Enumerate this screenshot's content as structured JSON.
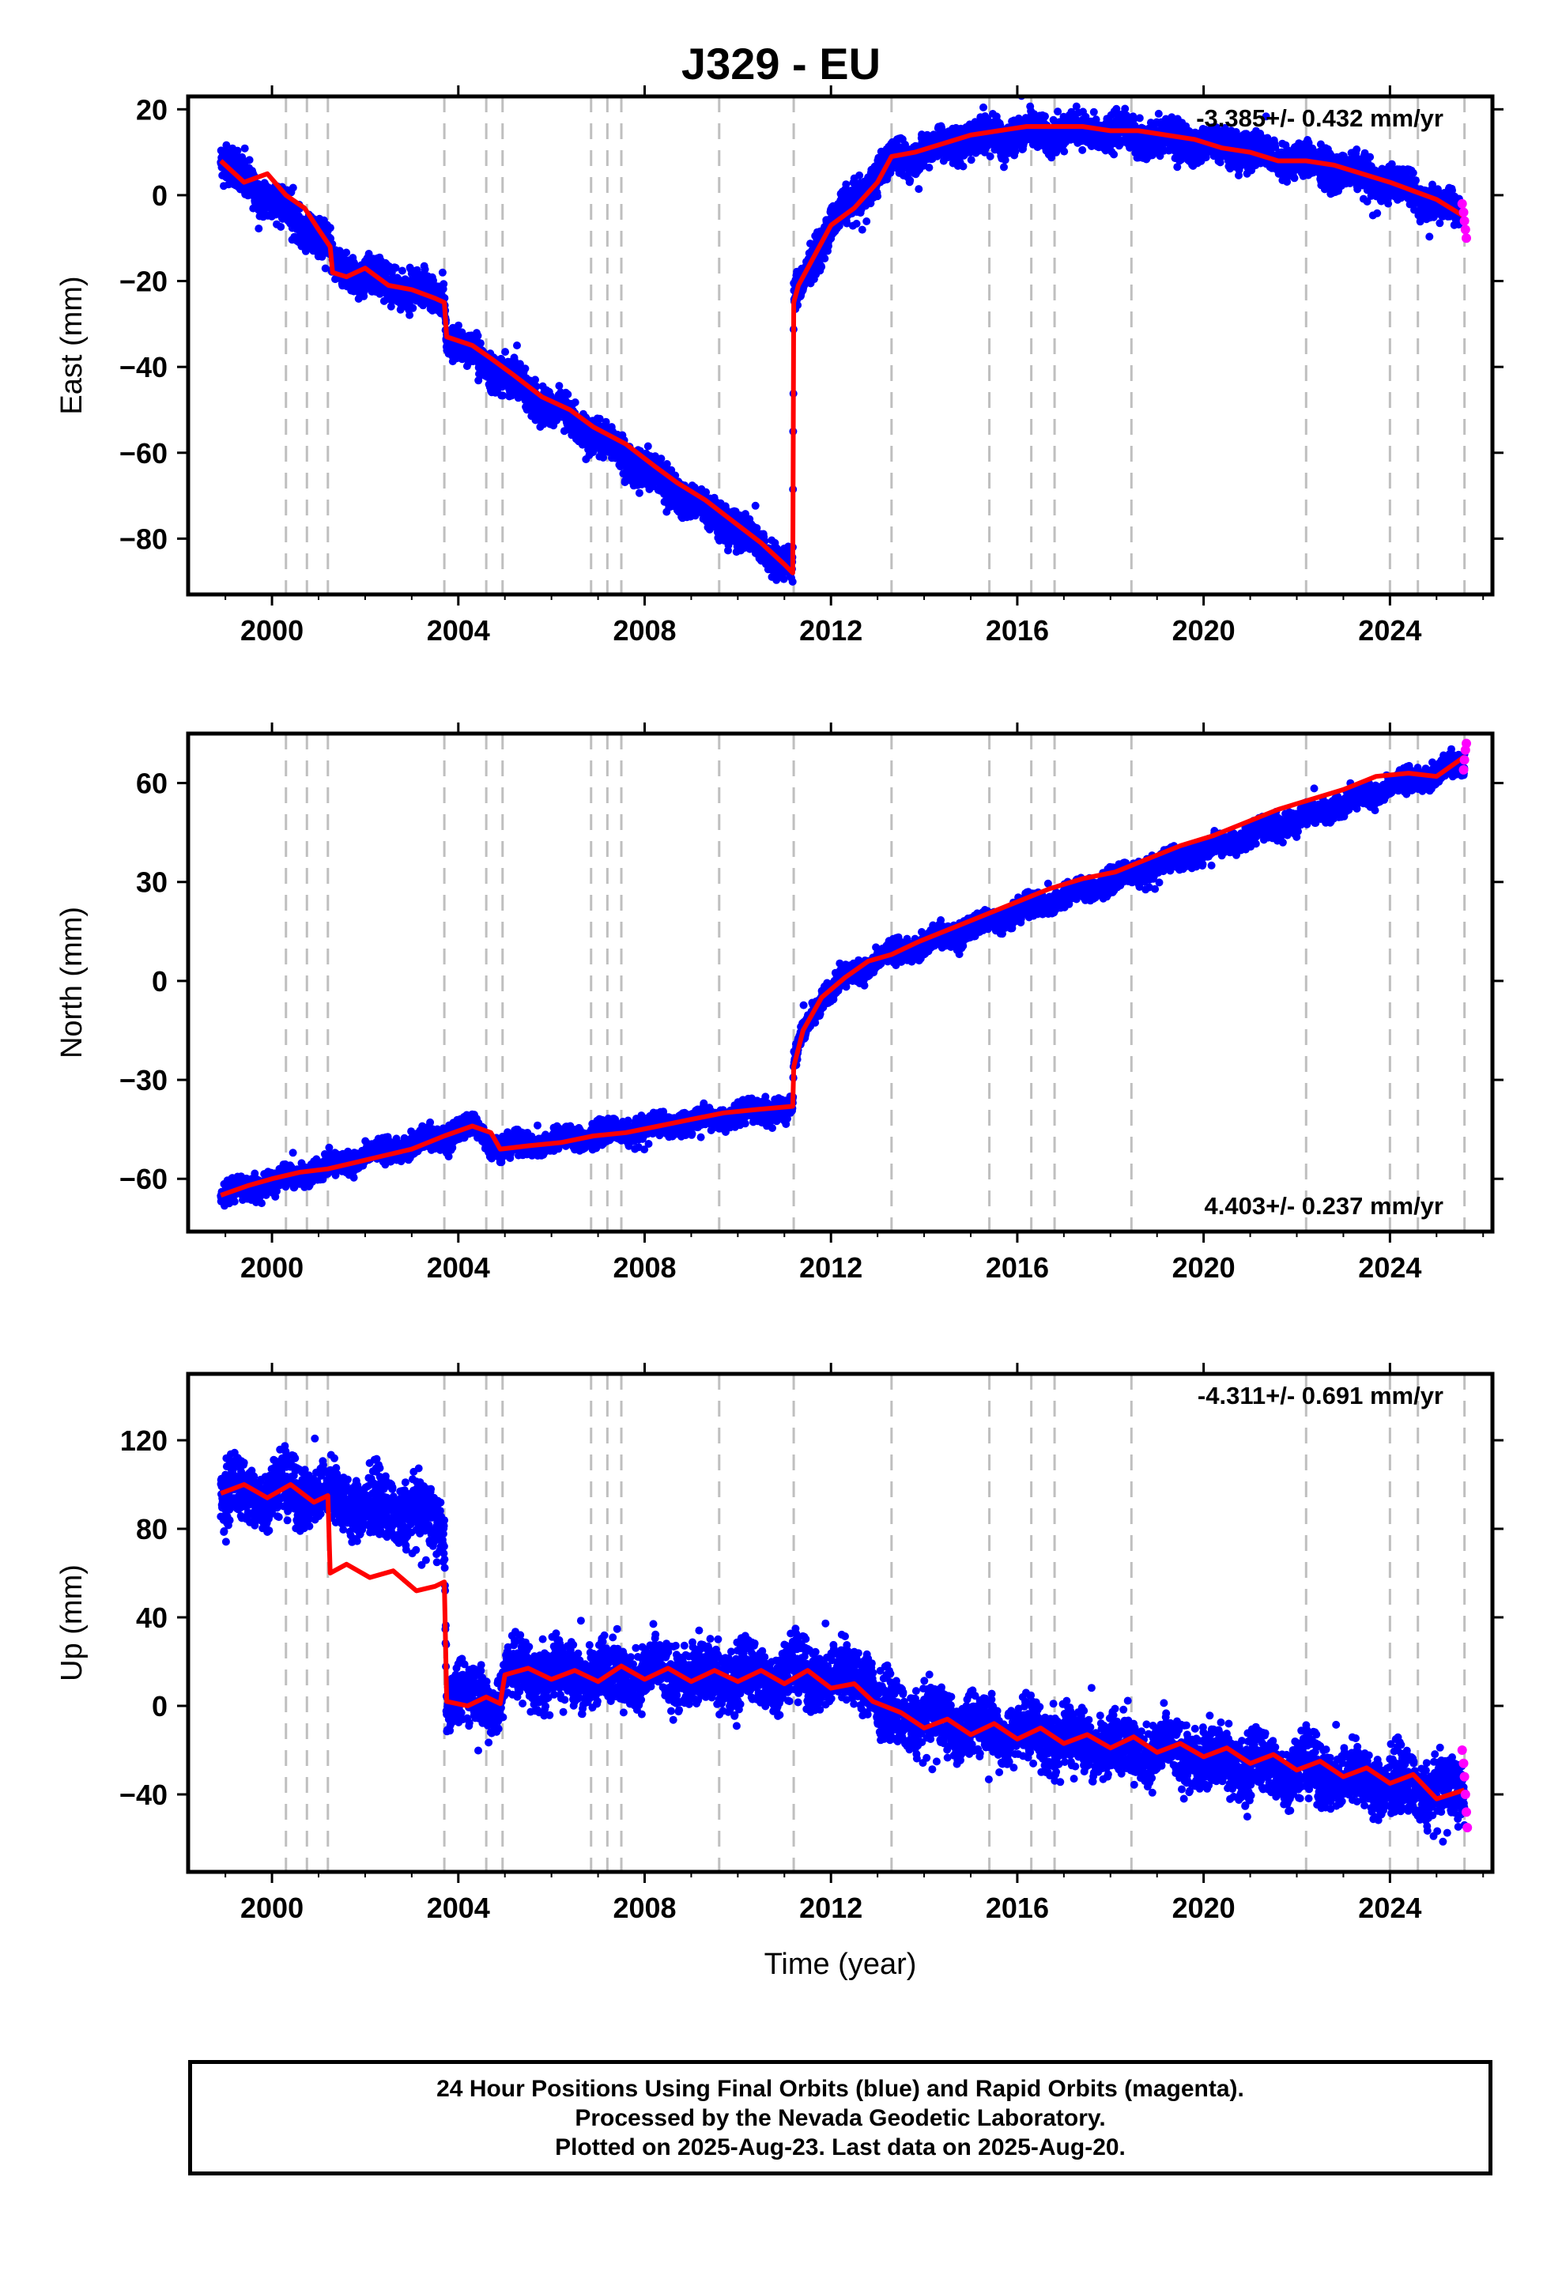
{
  "title": "J329 - EU",
  "xlabel": "Time (year)",
  "footer": {
    "line1": "24 Hour Positions Using Final Orbits (blue) and Rapid Orbits (magenta).",
    "line2": "Processed by the Nevada Geodetic Laboratory.",
    "line3": "Plotted on 2025-Aug-23. Last data on 2025-Aug-20."
  },
  "colors": {
    "final_orbits": "#0000ff",
    "rapid_orbits": "#ff00ff",
    "model_fit": "#ff0000",
    "event_lines": "#bfbfbf"
  },
  "chart_data": [
    {
      "type": "scatter",
      "panel": "east",
      "ylabel": "East (mm)",
      "rate_text": "-3.385+/- 0.432 mm/yr",
      "rate_position": "top-right",
      "xlim": [
        1998.2,
        2026.2
      ],
      "ylim": [
        -93,
        23
      ],
      "xticks": [
        2000,
        2004,
        2008,
        2012,
        2016,
        2020,
        2024
      ],
      "yticks": [
        -80,
        -60,
        -40,
        -20,
        0,
        20
      ],
      "model": [
        [
          1998.9,
          8
        ],
        [
          1999.4,
          3
        ],
        [
          1999.9,
          5
        ],
        [
          2000.3,
          0
        ],
        [
          2000.7,
          -3
        ],
        [
          2001.0,
          -8
        ],
        [
          2001.25,
          -12
        ],
        [
          2001.3,
          -18
        ],
        [
          2001.6,
          -19
        ],
        [
          2002.0,
          -17
        ],
        [
          2002.5,
          -21
        ],
        [
          2003.0,
          -22
        ],
        [
          2003.5,
          -24
        ],
        [
          2003.7,
          -25
        ],
        [
          2003.75,
          -33
        ],
        [
          2004.3,
          -35
        ],
        [
          2004.7,
          -38
        ],
        [
          2005.2,
          -42
        ],
        [
          2005.8,
          -47
        ],
        [
          2006.4,
          -50
        ],
        [
          2006.9,
          -54
        ],
        [
          2007.6,
          -58
        ],
        [
          2008.2,
          -63
        ],
        [
          2008.7,
          -67
        ],
        [
          2009.3,
          -71
        ],
        [
          2009.9,
          -76
        ],
        [
          2010.5,
          -81
        ],
        [
          2011.0,
          -86
        ],
        [
          2011.18,
          -88
        ],
        [
          2011.2,
          -25
        ],
        [
          2011.3,
          -21
        ],
        [
          2011.6,
          -15
        ],
        [
          2012.0,
          -7
        ],
        [
          2012.5,
          -3
        ],
        [
          2013.0,
          3
        ],
        [
          2013.3,
          9
        ],
        [
          2013.8,
          10
        ],
        [
          2014.4,
          12
        ],
        [
          2015.0,
          14
        ],
        [
          2015.6,
          15
        ],
        [
          2016.2,
          16
        ],
        [
          2016.8,
          16
        ],
        [
          2017.4,
          16
        ],
        [
          2018.0,
          15
        ],
        [
          2018.6,
          15
        ],
        [
          2019.2,
          14
        ],
        [
          2019.8,
          13
        ],
        [
          2020.4,
          11
        ],
        [
          2021.0,
          10
        ],
        [
          2021.6,
          8
        ],
        [
          2022.2,
          8
        ],
        [
          2022.8,
          7
        ],
        [
          2023.4,
          5
        ],
        [
          2024.0,
          3
        ],
        [
          2024.5,
          1
        ],
        [
          2025.0,
          -1
        ],
        [
          2025.6,
          -5
        ]
      ],
      "data_trend": [
        [
          1998.9,
          8
        ],
        [
          2001.25,
          -12
        ],
        [
          2001.3,
          -17
        ],
        [
          2003.7,
          -24
        ],
        [
          2003.75,
          -33
        ],
        [
          2011.18,
          -87
        ],
        [
          2011.2,
          -25
        ],
        [
          2011.6,
          -15
        ],
        [
          2012.0,
          -7
        ],
        [
          2013.3,
          8
        ],
        [
          2014.5,
          12
        ],
        [
          2015.5,
          14
        ],
        [
          2017.0,
          15
        ],
        [
          2018.5,
          14
        ],
        [
          2020.0,
          12
        ],
        [
          2022.0,
          8
        ],
        [
          2024.0,
          3
        ],
        [
          2025.5,
          -4
        ]
      ],
      "scatter_spread_mm": 3,
      "rapid_points": [
        [
          2025.55,
          -2
        ],
        [
          2025.58,
          -4
        ],
        [
          2025.6,
          -6
        ],
        [
          2025.62,
          -8
        ],
        [
          2025.64,
          -10
        ]
      ]
    },
    {
      "type": "scatter",
      "panel": "north",
      "ylabel": "North (mm)",
      "rate_text": "4.403+/- 0.237 mm/yr",
      "rate_position": "bottom-right",
      "xlim": [
        1998.2,
        2026.2
      ],
      "ylim": [
        -76,
        75
      ],
      "xticks": [
        2000,
        2004,
        2008,
        2012,
        2016,
        2020,
        2024
      ],
      "yticks": [
        -60,
        -30,
        0,
        30,
        60
      ],
      "model": [
        [
          1998.9,
          -65
        ],
        [
          1999.5,
          -62
        ],
        [
          2000.0,
          -60
        ],
        [
          2000.6,
          -58
        ],
        [
          2001.2,
          -57
        ],
        [
          2001.8,
          -55
        ],
        [
          2002.4,
          -53
        ],
        [
          2003.0,
          -51
        ],
        [
          2003.7,
          -47
        ],
        [
          2004.3,
          -44
        ],
        [
          2004.7,
          -46
        ],
        [
          2004.9,
          -51
        ],
        [
          2005.5,
          -50
        ],
        [
          2006.2,
          -49
        ],
        [
          2006.9,
          -47
        ],
        [
          2007.6,
          -46
        ],
        [
          2008.3,
          -44
        ],
        [
          2009.0,
          -42
        ],
        [
          2009.7,
          -40
        ],
        [
          2010.4,
          -39
        ],
        [
          2011.18,
          -38
        ],
        [
          2011.2,
          -26
        ],
        [
          2011.4,
          -15
        ],
        [
          2011.8,
          -5
        ],
        [
          2012.3,
          1
        ],
        [
          2012.8,
          6
        ],
        [
          2013.3,
          8
        ],
        [
          2013.9,
          12
        ],
        [
          2014.6,
          16
        ],
        [
          2015.3,
          20
        ],
        [
          2016.0,
          24
        ],
        [
          2016.7,
          28
        ],
        [
          2017.4,
          31
        ],
        [
          2018.1,
          33
        ],
        [
          2018.8,
          37
        ],
        [
          2019.5,
          41
        ],
        [
          2020.2,
          44
        ],
        [
          2020.9,
          48
        ],
        [
          2021.6,
          52
        ],
        [
          2022.3,
          55
        ],
        [
          2023.0,
          58
        ],
        [
          2023.7,
          62
        ],
        [
          2024.4,
          63
        ],
        [
          2025.0,
          62
        ],
        [
          2025.6,
          68
        ]
      ],
      "data_trend": [
        [
          1998.9,
          -65
        ],
        [
          2003.7,
          -47
        ],
        [
          2004.3,
          -44
        ],
        [
          2004.9,
          -51
        ],
        [
          2011.18,
          -38
        ],
        [
          2011.2,
          -26
        ],
        [
          2011.4,
          -15
        ],
        [
          2011.8,
          -5
        ],
        [
          2012.3,
          1
        ],
        [
          2013.3,
          8
        ],
        [
          2025.6,
          66
        ]
      ],
      "scatter_spread_mm": 2.5,
      "rapid_points": [
        [
          2025.58,
          64
        ],
        [
          2025.6,
          67
        ],
        [
          2025.62,
          70
        ],
        [
          2025.64,
          72
        ]
      ]
    },
    {
      "type": "scatter",
      "panel": "up",
      "ylabel": "Up (mm)",
      "rate_text": "-4.311+/- 0.691 mm/yr",
      "rate_position": "top-right",
      "xlim": [
        1998.2,
        2026.2
      ],
      "ylim": [
        -75,
        150
      ],
      "xticks": [
        2000,
        2004,
        2008,
        2012,
        2016,
        2020,
        2024
      ],
      "yticks": [
        -40,
        0,
        40,
        80,
        120
      ],
      "model": [
        [
          1998.9,
          96
        ],
        [
          1999.4,
          100
        ],
        [
          1999.9,
          94
        ],
        [
          2000.4,
          100
        ],
        [
          2000.9,
          92
        ],
        [
          2001.2,
          95
        ],
        [
          2001.25,
          60
        ],
        [
          2001.6,
          64
        ],
        [
          2002.1,
          58
        ],
        [
          2002.6,
          61
        ],
        [
          2003.1,
          52
        ],
        [
          2003.5,
          54
        ],
        [
          2003.7,
          56
        ],
        [
          2003.75,
          2
        ],
        [
          2004.2,
          0
        ],
        [
          2004.6,
          4
        ],
        [
          2004.9,
          1
        ],
        [
          2005.0,
          14
        ],
        [
          2005.5,
          17
        ],
        [
          2006.0,
          12
        ],
        [
          2006.5,
          16
        ],
        [
          2007.0,
          11
        ],
        [
          2007.5,
          18
        ],
        [
          2008.0,
          12
        ],
        [
          2008.5,
          17
        ],
        [
          2009.0,
          11
        ],
        [
          2009.5,
          16
        ],
        [
          2010.0,
          11
        ],
        [
          2010.5,
          16
        ],
        [
          2011.0,
          10
        ],
        [
          2011.5,
          16
        ],
        [
          2012.0,
          8
        ],
        [
          2012.5,
          10
        ],
        [
          2012.9,
          2
        ],
        [
          2013.5,
          -3
        ],
        [
          2014.0,
          -10
        ],
        [
          2014.5,
          -6
        ],
        [
          2015.0,
          -13
        ],
        [
          2015.5,
          -8
        ],
        [
          2016.0,
          -15
        ],
        [
          2016.5,
          -10
        ],
        [
          2017.0,
          -17
        ],
        [
          2017.5,
          -13
        ],
        [
          2018.0,
          -19
        ],
        [
          2018.5,
          -14
        ],
        [
          2019.0,
          -21
        ],
        [
          2019.5,
          -17
        ],
        [
          2020.0,
          -23
        ],
        [
          2020.5,
          -19
        ],
        [
          2021.0,
          -26
        ],
        [
          2021.5,
          -22
        ],
        [
          2022.0,
          -29
        ],
        [
          2022.5,
          -25
        ],
        [
          2023.0,
          -32
        ],
        [
          2023.5,
          -28
        ],
        [
          2024.0,
          -35
        ],
        [
          2024.5,
          -31
        ],
        [
          2025.0,
          -42
        ],
        [
          2025.6,
          -38
        ]
      ],
      "data_trend": [
        [
          1998.9,
          96
        ],
        [
          2001.0,
          96
        ],
        [
          2002.0,
          90
        ],
        [
          2003.0,
          88
        ],
        [
          2003.7,
          80
        ],
        [
          2003.75,
          5
        ],
        [
          2004.9,
          3
        ],
        [
          2005.0,
          15
        ],
        [
          2012.9,
          13
        ],
        [
          2013.0,
          -3
        ],
        [
          2025.6,
          -40
        ]
      ],
      "scatter_spread_mm": 10,
      "rapid_points": [
        [
          2025.55,
          -20
        ],
        [
          2025.58,
          -26
        ],
        [
          2025.6,
          -32
        ],
        [
          2025.62,
          -40
        ],
        [
          2025.64,
          -48
        ],
        [
          2025.66,
          -55
        ]
      ]
    }
  ],
  "event_lines_years": [
    2000.3,
    2000.75,
    2001.2,
    2003.7,
    2004.6,
    2004.95,
    2006.85,
    2007.2,
    2007.5,
    2009.6,
    2011.2,
    2013.3,
    2015.4,
    2016.3,
    2016.8,
    2018.45,
    2022.2,
    2024.0,
    2024.6,
    2025.6
  ]
}
